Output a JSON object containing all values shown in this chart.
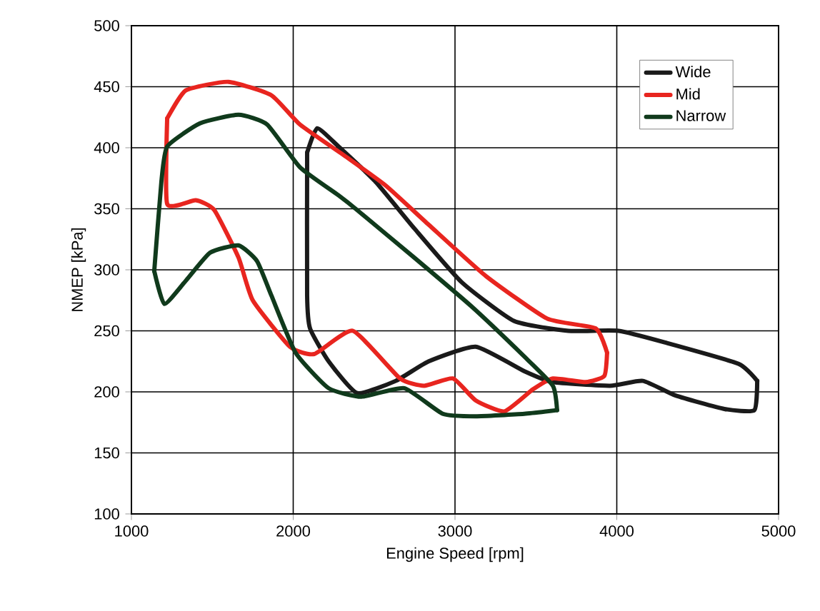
{
  "chart_data": {
    "type": "line",
    "xlabel": "Engine Speed [rpm]",
    "ylabel": "NMEP [kPa]",
    "xlim": [
      1000,
      5000
    ],
    "xticks": [
      1000,
      2000,
      3000,
      4000,
      5000
    ],
    "ylim": [
      100,
      500
    ],
    "yticks": [
      100,
      150,
      200,
      250,
      300,
      350,
      400,
      450,
      500
    ],
    "grid": true,
    "legend": "top right",
    "series": [
      {
        "name": "Wide",
        "color": "#1a1a1a",
        "x": [
          2086,
          2148,
          2280,
          2510,
          2748,
          3040,
          3366,
          3700,
          4011,
          4311,
          4753,
          4868
        ],
        "values": [
          396,
          416,
          401,
          372,
          334,
          290,
          258,
          250,
          250,
          240,
          223,
          209
        ]
      },
      {
        "color": "#1a1a1a",
        "x": [
          2086,
          2086,
          2104,
          2219,
          2395,
          2634,
          2837,
          3128,
          3428,
          3605,
          3958,
          4161,
          4364,
          4665,
          4850,
          4868
        ],
        "values": [
          396,
          279,
          252,
          225,
          199,
          209,
          225,
          237,
          217,
          208,
          205,
          209,
          197,
          186,
          185,
          209
        ]
      },
      {
        "name": "Mid",
        "color": "#e8251f",
        "x": [
          1221,
          1336,
          1600,
          1865,
          2042,
          2333,
          2572,
          2837,
          3190,
          3570,
          3870,
          3940
        ],
        "values": [
          424,
          447,
          454,
          443,
          419,
          392,
          369,
          337,
          295,
          260,
          252,
          232
        ]
      },
      {
        "color": "#e8251f",
        "x": [
          1221,
          1221,
          1397,
          1512,
          1662,
          1750,
          1980,
          2130,
          2369,
          2660,
          2810,
          2987,
          3128,
          3305,
          3481,
          3605,
          3808,
          3923,
          3940
        ],
        "values": [
          424,
          354,
          357,
          349,
          310,
          275,
          237,
          231,
          250,
          211,
          205,
          211,
          193,
          184,
          202,
          211,
          208,
          213,
          232
        ]
      },
      {
        "name": "Narrow",
        "color": "#103a1c",
        "x": [
          1141,
          1185,
          1221,
          1424,
          1662,
          1839,
          2042,
          2280,
          2395,
          2748,
          3102,
          3428,
          3605,
          3631
        ],
        "values": [
          299,
          372,
          401,
          420,
          427,
          419,
          384,
          361,
          349,
          310,
          270,
          229,
          205,
          185
        ]
      },
      {
        "color": "#103a1c",
        "x": [
          1141,
          1203,
          1336,
          1486,
          1662,
          1777,
          1865,
          2015,
          2219,
          2422,
          2686,
          2925,
          3128,
          3428,
          3631
        ],
        "values": [
          299,
          272,
          291,
          314,
          320,
          307,
          279,
          232,
          203,
          196,
          203,
          182,
          180,
          182,
          185
        ]
      }
    ]
  }
}
